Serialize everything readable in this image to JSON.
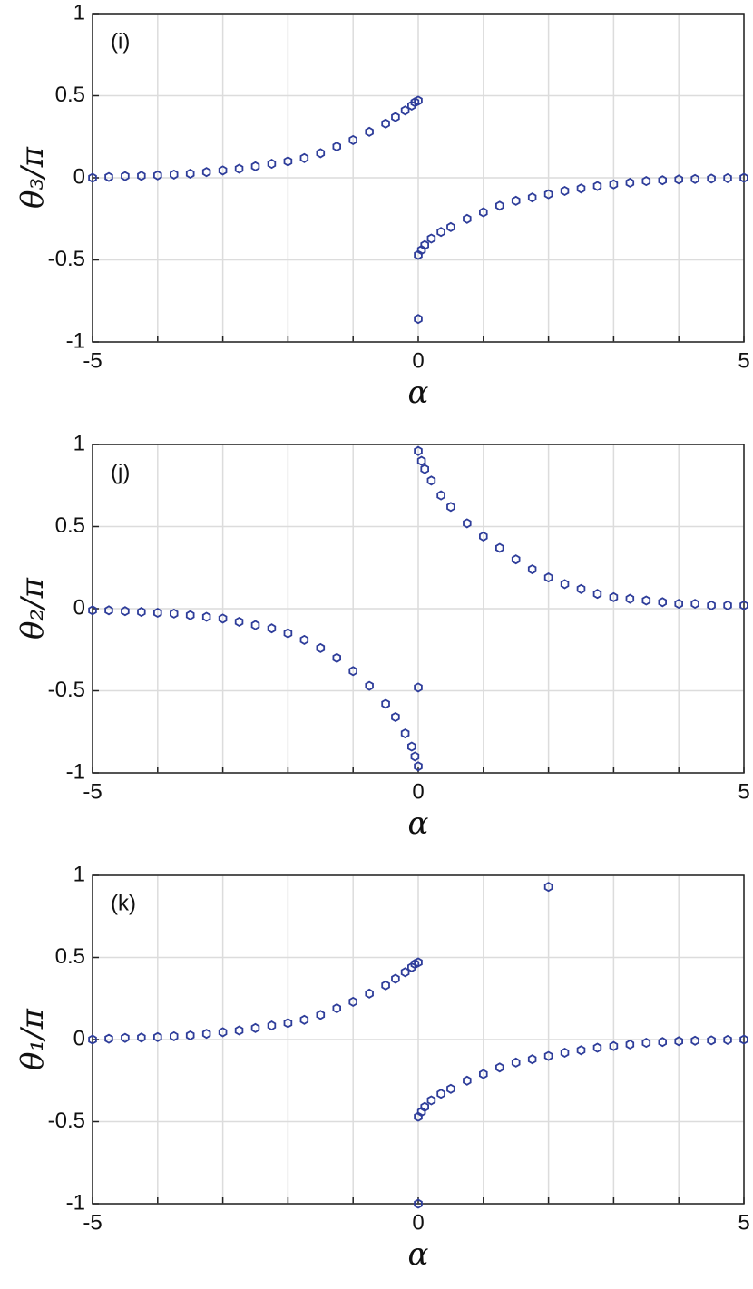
{
  "chart_data": [
    {
      "type": "scatter",
      "annotation": "(i)",
      "ylabel": "θ₃/π",
      "xlabel": "α",
      "color": "#2e3d9a",
      "xlim": [
        -5,
        5
      ],
      "ylim": [
        -1,
        1
      ],
      "xticks": [
        -5,
        0,
        5
      ],
      "yticks": [
        -1,
        -0.5,
        0,
        0.5,
        1
      ],
      "xgrid": [
        -5,
        -4,
        -3,
        -2,
        -1,
        0,
        1,
        2,
        3,
        4,
        5
      ],
      "grid": true,
      "x": [
        -5,
        -4.75,
        -4.5,
        -4.25,
        -4,
        -3.75,
        -3.5,
        -3.25,
        -3,
        -2.75,
        -2.5,
        -2.25,
        -2,
        -1.75,
        -1.5,
        -1.25,
        -1,
        -0.75,
        -0.5,
        -0.35,
        -0.2,
        -0.1,
        -0.05,
        0,
        0,
        0.05,
        0.1,
        0.2,
        0.35,
        0.5,
        0.75,
        1,
        1.25,
        1.5,
        1.75,
        2,
        2.25,
        2.5,
        2.75,
        3,
        3.25,
        3.5,
        3.75,
        4,
        4.25,
        4.5,
        4.75,
        5,
        0
      ],
      "values": [
        0,
        0.005,
        0.01,
        0.012,
        0.015,
        0.02,
        0.025,
        0.035,
        0.045,
        0.055,
        0.07,
        0.085,
        0.1,
        0.12,
        0.15,
        0.19,
        0.23,
        0.28,
        0.33,
        0.37,
        0.41,
        0.44,
        0.46,
        0.47,
        -0.47,
        -0.44,
        -0.41,
        -0.37,
        -0.33,
        -0.3,
        -0.25,
        -0.21,
        -0.17,
        -0.14,
        -0.12,
        -0.1,
        -0.08,
        -0.065,
        -0.05,
        -0.04,
        -0.03,
        -0.02,
        -0.015,
        -0.01,
        -0.007,
        -0.005,
        -0.002,
        0,
        -0.86
      ]
    },
    {
      "type": "scatter",
      "annotation": "(j)",
      "ylabel": "θ₂/π",
      "xlabel": "α",
      "color": "#2e3d9a",
      "xlim": [
        -5,
        5
      ],
      "ylim": [
        -1,
        1
      ],
      "xticks": [
        -5,
        0,
        5
      ],
      "yticks": [
        -1,
        -0.5,
        0,
        0.5,
        1
      ],
      "xgrid": [
        -5,
        -4,
        -3,
        -2,
        -1,
        0,
        1,
        2,
        3,
        4,
        5
      ],
      "grid": true,
      "x": [
        -5,
        -4.75,
        -4.5,
        -4.25,
        -4,
        -3.75,
        -3.5,
        -3.25,
        -3,
        -2.75,
        -2.5,
        -2.25,
        -2,
        -1.75,
        -1.5,
        -1.25,
        -1,
        -0.75,
        -0.5,
        -0.35,
        -0.2,
        -0.1,
        -0.05,
        0,
        0,
        0.05,
        0.1,
        0.2,
        0.35,
        0.5,
        0.75,
        1,
        1.25,
        1.5,
        1.75,
        2,
        2.25,
        2.5,
        2.75,
        3,
        3.25,
        3.5,
        3.75,
        4,
        4.25,
        4.5,
        4.75,
        5,
        0
      ],
      "values": [
        -0.01,
        -0.01,
        -0.015,
        -0.02,
        -0.025,
        -0.03,
        -0.04,
        -0.05,
        -0.06,
        -0.08,
        -0.1,
        -0.12,
        -0.15,
        -0.19,
        -0.24,
        -0.3,
        -0.38,
        -0.47,
        -0.58,
        -0.66,
        -0.76,
        -0.84,
        -0.9,
        -0.96,
        0.96,
        0.9,
        0.85,
        0.78,
        0.69,
        0.62,
        0.52,
        0.44,
        0.37,
        0.3,
        0.24,
        0.19,
        0.15,
        0.12,
        0.09,
        0.07,
        0.06,
        0.05,
        0.04,
        0.03,
        0.03,
        0.02,
        0.02,
        0.02,
        -0.48
      ]
    },
    {
      "type": "scatter",
      "annotation": "(k)",
      "ylabel": "θ₁/π",
      "xlabel": "α",
      "color": "#2e3d9a",
      "xlim": [
        -5,
        5
      ],
      "ylim": [
        -1,
        1
      ],
      "xticks": [
        -5,
        0,
        5
      ],
      "yticks": [
        -1,
        -0.5,
        0,
        0.5,
        1
      ],
      "xgrid": [
        -5,
        -4,
        -3,
        -2,
        -1,
        0,
        1,
        2,
        3,
        4,
        5
      ],
      "grid": true,
      "x": [
        -5,
        -4.75,
        -4.5,
        -4.25,
        -4,
        -3.75,
        -3.5,
        -3.25,
        -3,
        -2.75,
        -2.5,
        -2.25,
        -2,
        -1.75,
        -1.5,
        -1.25,
        -1,
        -0.75,
        -0.5,
        -0.35,
        -0.2,
        -0.1,
        -0.05,
        0,
        0,
        0.05,
        0.1,
        0.2,
        0.35,
        0.5,
        0.75,
        1,
        1.25,
        1.5,
        1.75,
        2,
        2.25,
        2.5,
        2.75,
        3,
        3.25,
        3.5,
        3.75,
        4,
        4.25,
        4.5,
        4.75,
        5,
        0,
        2
      ],
      "values": [
        0,
        0.005,
        0.01,
        0.012,
        0.015,
        0.02,
        0.025,
        0.035,
        0.045,
        0.055,
        0.07,
        0.085,
        0.1,
        0.12,
        0.15,
        0.19,
        0.23,
        0.28,
        0.33,
        0.37,
        0.41,
        0.44,
        0.46,
        0.47,
        -0.47,
        -0.44,
        -0.41,
        -0.37,
        -0.33,
        -0.3,
        -0.25,
        -0.21,
        -0.17,
        -0.14,
        -0.12,
        -0.1,
        -0.08,
        -0.065,
        -0.05,
        -0.04,
        -0.03,
        -0.02,
        -0.015,
        -0.01,
        -0.007,
        -0.005,
        -0.002,
        0,
        -1,
        0.93
      ]
    }
  ]
}
